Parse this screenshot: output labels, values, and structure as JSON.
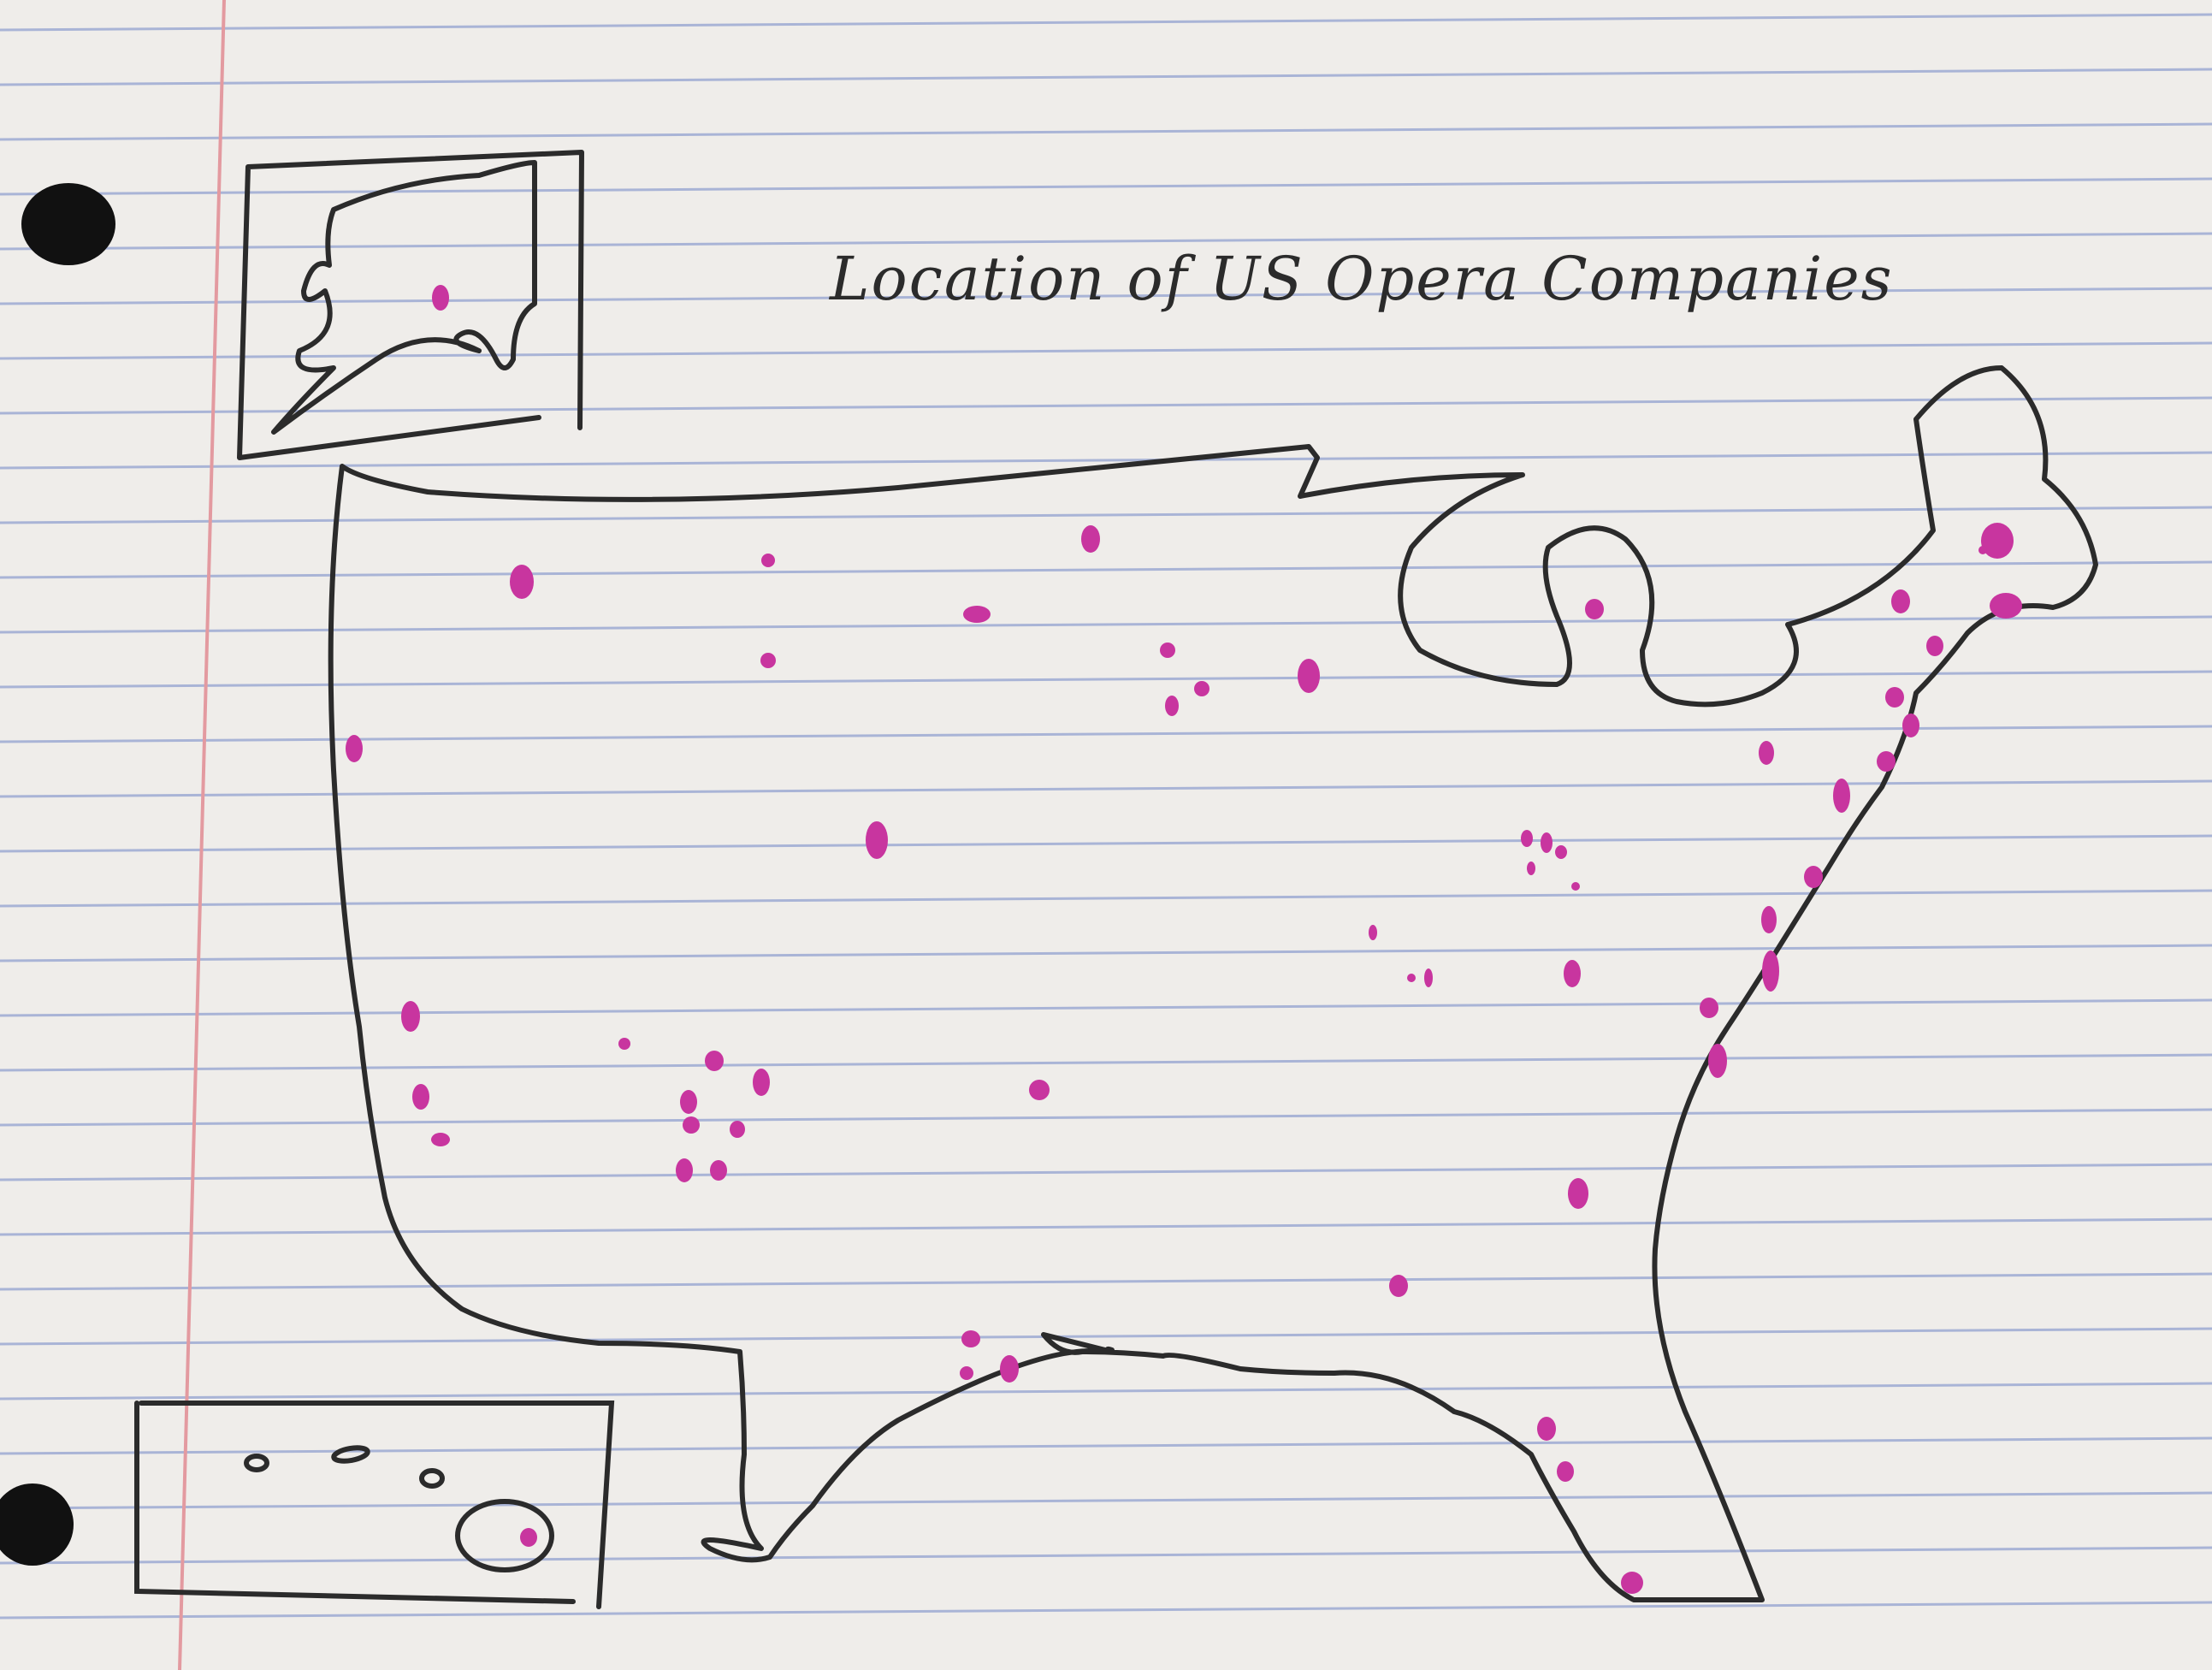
{
  "title": "Location of US Opera Companies",
  "colors": {
    "paper": "#efedea",
    "rule_line": "#a9b4d6",
    "margin_line": "#e39aa0",
    "ink": "#2b2b2b",
    "marker": "#c8359f",
    "punch_hole": "#111111"
  },
  "map": {
    "regions": [
      "contiguous-us",
      "alaska-inset",
      "hawaii-inset"
    ],
    "marker_icon": "opera-company-dot"
  }
}
